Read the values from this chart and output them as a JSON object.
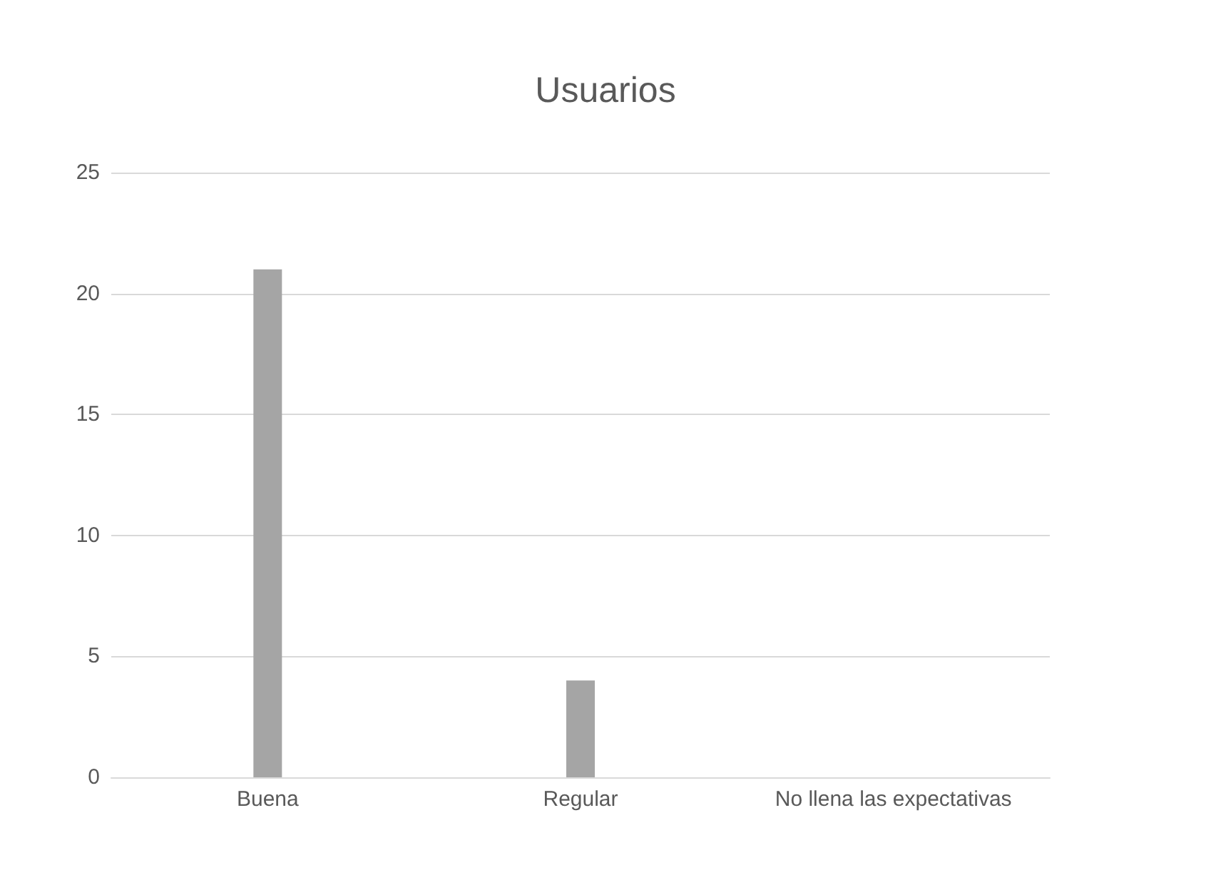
{
  "chart_data": {
    "type": "bar",
    "title": "Usuarios",
    "categories": [
      "Buena",
      "Regular",
      "No llena las expectativas"
    ],
    "values": [
      21,
      4,
      0
    ],
    "color": "#a5a5a5",
    "ylim": [
      0,
      25
    ],
    "yticks": [
      0,
      5,
      10,
      15,
      20,
      25
    ],
    "grid": "y"
  }
}
